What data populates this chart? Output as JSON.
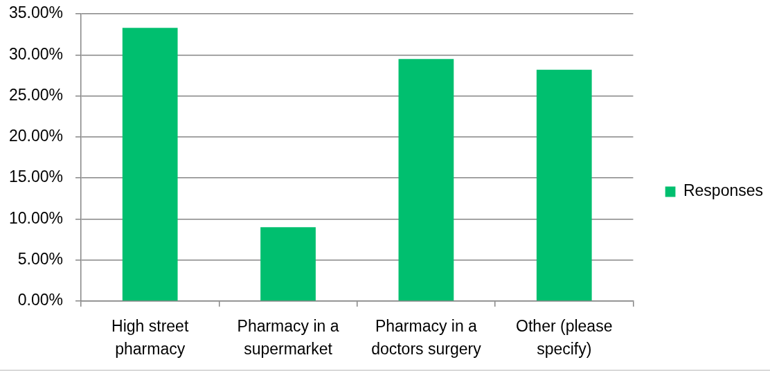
{
  "chart_data": {
    "type": "bar",
    "categories": [
      "High street pharmacy",
      "Pharmacy in a supermarket",
      "Pharmacy in a doctors surgery",
      "Other (please specify)"
    ],
    "series": [
      {
        "name": "Responses",
        "color": "#00bf6f",
        "values": [
          33.3,
          9,
          29.5,
          28.2
        ]
      }
    ],
    "ylim": [
      0,
      35
    ],
    "yticks": [
      {
        "value": 0,
        "label": "0.00%"
      },
      {
        "value": 5,
        "label": "5.00%"
      },
      {
        "value": 10,
        "label": "10.00%"
      },
      {
        "value": 15,
        "label": "15.00%"
      },
      {
        "value": 20,
        "label": "20.00%"
      },
      {
        "value": 25,
        "label": "25.00%"
      },
      {
        "value": 30,
        "label": "30.00%"
      },
      {
        "value": 35,
        "label": "35.00%"
      }
    ],
    "grid": "y",
    "legend": "right"
  }
}
